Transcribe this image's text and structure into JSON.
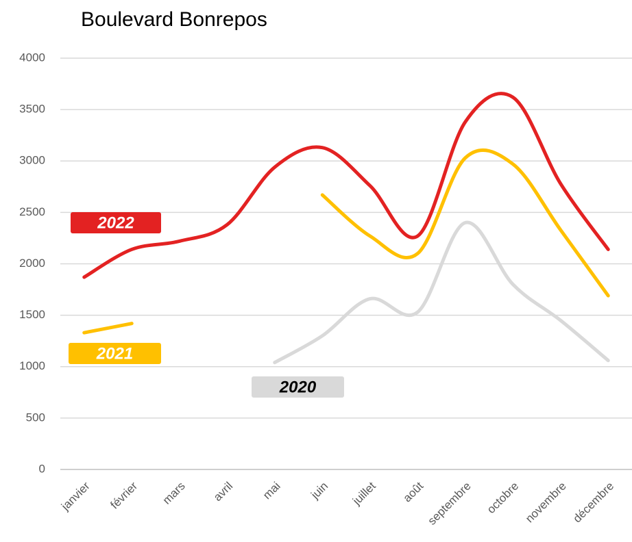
{
  "chart_data": {
    "type": "line",
    "title": "Boulevard Bonrepos",
    "categories": [
      "janvier",
      "février",
      "mars",
      "avril",
      "mai",
      "juin",
      "juillet",
      "août",
      "septembre",
      "octobre",
      "novembre",
      "décembre"
    ],
    "series": [
      {
        "name": "2022",
        "color": "#e32222",
        "values": [
          1870,
          2140,
          2220,
          2380,
          2940,
          3130,
          2760,
          2270,
          3380,
          3620,
          2780,
          2140
        ]
      },
      {
        "name": "2021",
        "color": "#ffc000",
        "values": [
          1330,
          1420,
          null,
          null,
          null,
          2670,
          2270,
          2100,
          3030,
          2970,
          2330,
          1690
        ]
      },
      {
        "name": "2020",
        "color": "#d9d9d9",
        "values": [
          null,
          null,
          null,
          null,
          1040,
          1300,
          1660,
          1530,
          2400,
          1800,
          1450,
          1060
        ]
      }
    ],
    "ylim": [
      0,
      4000
    ],
    "yticks": [
      0,
      500,
      1000,
      1500,
      2000,
      2500,
      3000,
      3500,
      4000
    ],
    "grid": true,
    "smooth": true
  }
}
